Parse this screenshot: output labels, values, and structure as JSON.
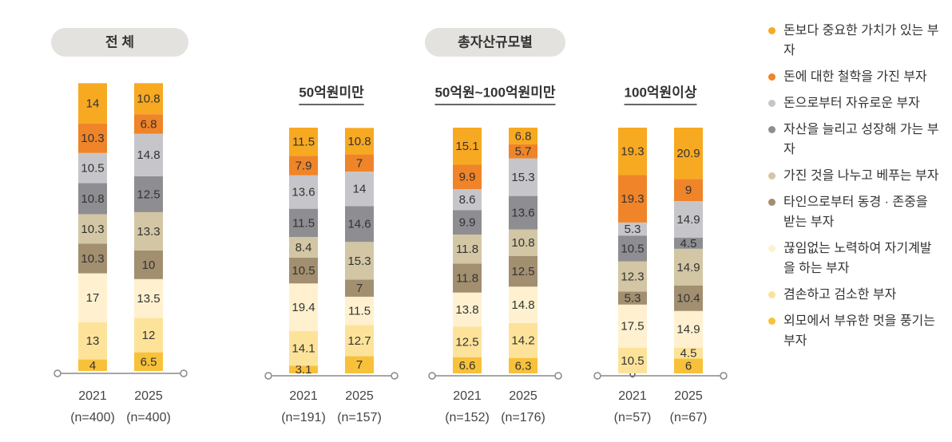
{
  "headers": {
    "total": "전 체",
    "by_assets": "총자산규모별"
  },
  "series": [
    {
      "name": "외모에서 부유한 멋을 풍기는 부자",
      "color": "#f8c13a"
    },
    {
      "name": "겸손하고 검소한 부자",
      "color": "#fde39a"
    },
    {
      "name": "끊임없는 노력하여 자기계발을 하는 부자",
      "color": "#fff1cf"
    },
    {
      "name": "타인으로부터 동경 · 존중을 받는 부자",
      "color": "#a28f70"
    },
    {
      "name": "가진 것을 나누고 베푸는 부자",
      "color": "#d3c6a4"
    },
    {
      "name": "자산을 늘리고 성장해 가는 부자",
      "color": "#8e8e92"
    },
    {
      "name": "돈으로부터 자유로운 부자",
      "color": "#c6c6ca"
    },
    {
      "name": "돈에 대한 철학을 가진 부자",
      "color": "#f08428"
    },
    {
      "name": "돈보다 중요한 가치가 있는 부자",
      "color": "#f7a922"
    }
  ],
  "chart_data": [
    {
      "type": "bar",
      "stacked": true,
      "ylim": [
        0,
        100
      ],
      "categories": [
        "2021",
        "2025"
      ],
      "n_labels": [
        "(n=400)",
        "(n=400)"
      ],
      "series_values": [
        [
          4.0,
          6.5
        ],
        [
          13.0,
          12.0
        ],
        [
          17.0,
          13.5
        ],
        [
          10.3,
          10.0
        ],
        [
          10.3,
          13.3
        ],
        [
          10.8,
          12.5
        ],
        [
          10.5,
          14.8
        ],
        [
          10.3,
          6.8
        ],
        [
          14.0,
          10.8
        ]
      ]
    },
    {
      "type": "bar",
      "stacked": true,
      "title": "50억원미만",
      "ylim": [
        0,
        100
      ],
      "categories": [
        "2021",
        "2025"
      ],
      "n_labels": [
        "(n=191)",
        "(n=157)"
      ],
      "series_values": [
        [
          3.1,
          7.0
        ],
        [
          14.1,
          12.7
        ],
        [
          19.4,
          11.5
        ],
        [
          10.5,
          7.0
        ],
        [
          8.4,
          15.3
        ],
        [
          11.5,
          14.6
        ],
        [
          13.6,
          14.0
        ],
        [
          7.9,
          7.0
        ],
        [
          11.5,
          10.8
        ]
      ]
    },
    {
      "type": "bar",
      "stacked": true,
      "title": "50억원~100억원미만",
      "ylim": [
        0,
        100
      ],
      "categories": [
        "2021",
        "2025"
      ],
      "n_labels": [
        "(n=152)",
        "(n=176)"
      ],
      "series_values": [
        [
          6.6,
          6.3
        ],
        [
          12.5,
          14.2
        ],
        [
          13.8,
          14.8
        ],
        [
          11.8,
          12.5
        ],
        [
          11.8,
          10.8
        ],
        [
          9.9,
          13.6
        ],
        [
          8.6,
          15.3
        ],
        [
          9.9,
          5.7
        ],
        [
          15.1,
          6.8
        ]
      ]
    },
    {
      "type": "bar",
      "stacked": true,
      "title": "100억원이상",
      "ylim": [
        0,
        100
      ],
      "categories": [
        "2021",
        "2025"
      ],
      "n_labels": [
        "(n=57)",
        "(n=67)"
      ],
      "series_values": [
        [
          0.0,
          6.0
        ],
        [
          10.5,
          4.5
        ],
        [
          17.5,
          14.9
        ],
        [
          5.3,
          10.4
        ],
        [
          12.3,
          14.9
        ],
        [
          10.5,
          4.5
        ],
        [
          5.3,
          14.9
        ],
        [
          19.3,
          9.0
        ],
        [
          19.3,
          20.9
        ]
      ]
    }
  ]
}
